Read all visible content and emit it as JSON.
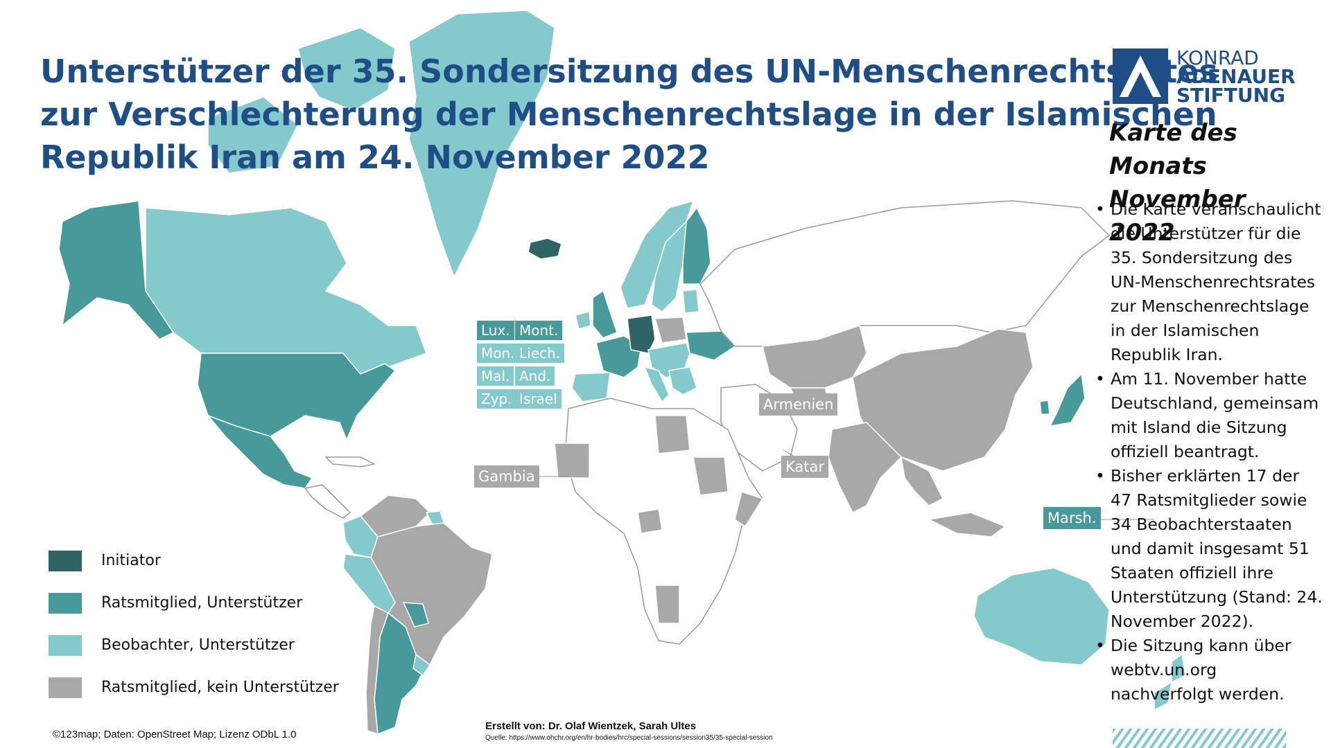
{
  "title_lines": [
    "Unterstützer der 35. Sondersitzung des UN-Menschenrechtsrates",
    "zur Verschlechterung der Menschenrechtslage in der Islamischen",
    "Republik Iran am 24. November 2022"
  ],
  "logo": {
    "lines": [
      "KONRAD",
      "ADENAUER",
      "STIFTUNG"
    ]
  },
  "karte_des_monats": [
    "Karte des Monats",
    "November 2022"
  ],
  "bullets": [
    "Die Karte veranschaulicht die Unterstützer für die 35. Sondersitzung des UN-Menschenrechtsrates zur Menschenrechtslage in der Islamischen Republik Iran.",
    "Am 11. November hatte Deutschland, gemeinsam mit Island die Sitzung offiziell beantragt.",
    "Bisher erklärten 17 der 47 Ratsmitglieder sowie 34 Beobachterstaaten und damit insgesamt 51 Staaten offiziell ihre Unterstützung (Stand: 24. November 2022).",
    "Die Sitzung kann über webtv.un.org nachverfolgt werden."
  ],
  "legend": [
    {
      "label": "Initiator",
      "color": "#2f6364"
    },
    {
      "label": "Ratsmitglied, Unterstützer",
      "color": "#47999a"
    },
    {
      "label": "Beobachter, Unterstützer",
      "color": "#84c9cc"
    },
    {
      "label": "Ratsmitglied, kein Unterstützer",
      "color": "#a8a8a8"
    }
  ],
  "small_state_tags": {
    "observer_grid": [
      "Lux.",
      "Mont.",
      "Mon.",
      "Liech.",
      "Mal.",
      "And.",
      "Zyp.",
      "Israel"
    ],
    "armenien": "Armenien",
    "gambia": "Gambia",
    "katar": "Katar",
    "marsh": "Marsh."
  },
  "credit": "©123map; Daten: OpenStreet Map; Lizenz ODbL 1.0",
  "author": "Erstellt von: Dr. Olaf Wientzek, Sarah Ultes",
  "source": "Quelle: https://www.ohchr.org/en/hr-bodies/hrc/special-sessions/session35/35-special-session"
}
